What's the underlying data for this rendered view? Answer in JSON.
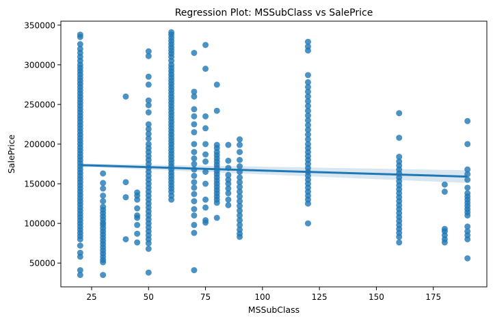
{
  "chart_data": {
    "type": "scatter",
    "title": "Regression Plot: MSSubClass vs SalePrice",
    "xlabel": "MSSubClass",
    "ylabel": "SalePrice",
    "xlim": [
      11.5,
      198.5
    ],
    "ylim": [
      20000,
      355000
    ],
    "xticks": [
      25,
      50,
      75,
      100,
      125,
      150,
      175
    ],
    "yticks": [
      50000,
      100000,
      150000,
      200000,
      250000,
      300000,
      350000
    ],
    "grid": false,
    "legend": "none",
    "point_color": "#1f77b4",
    "line_color": "#1f77b4",
    "band_color": "#1f77b4",
    "regression": {
      "x": [
        20,
        190
      ],
      "y": [
        173500,
        159000
      ],
      "ci_lower": [
        171500,
        151000
      ],
      "ci_upper": [
        175500,
        167000
      ]
    },
    "groups": [
      {
        "x": 20,
        "values": [
          338000,
          335000,
          326000,
          320000,
          315000,
          310000,
          305000,
          300000,
          296000,
          292000,
          288000,
          284000,
          280000,
          276000,
          272000,
          268000,
          264000,
          260000,
          256000,
          252000,
          248000,
          244000,
          240000,
          236000,
          232000,
          228000,
          224000,
          220000,
          216000,
          212000,
          208000,
          204000,
          200000,
          196000,
          192000,
          188000,
          184000,
          180000,
          176000,
          172000,
          168000,
          164000,
          160000,
          156000,
          152000,
          148000,
          144000,
          140000,
          136000,
          132000,
          128000,
          124000,
          120000,
          116000,
          112000,
          108000,
          104000,
          100000,
          96000,
          92000,
          88000,
          84000,
          80000,
          72000,
          63000,
          58000,
          41000,
          35000
        ]
      },
      {
        "x": 30,
        "values": [
          163000,
          151000,
          144000,
          135000,
          128000,
          121000,
          117000,
          113000,
          109000,
          105000,
          101000,
          98000,
          94000,
          90000,
          86000,
          82000,
          78000,
          74000,
          70000,
          66000,
          62000,
          58000,
          54000,
          51000,
          35000
        ]
      },
      {
        "x": 40,
        "values": [
          260000,
          152000,
          133000,
          80000
        ]
      },
      {
        "x": 45,
        "values": [
          139000,
          135000,
          130000,
          119000,
          110000,
          107000,
          98000,
          87000,
          76000
        ]
      },
      {
        "x": 50,
        "values": [
          317000,
          311000,
          285000,
          275000,
          255000,
          249000,
          240000,
          225000,
          219000,
          213000,
          207000,
          200000,
          195000,
          190000,
          185000,
          180000,
          175000,
          170000,
          165000,
          160000,
          155000,
          150000,
          145000,
          140000,
          135000,
          130000,
          125000,
          120000,
          115000,
          110000,
          105000,
          100000,
          95000,
          90000,
          85000,
          80000,
          75000,
          68000,
          38000
        ]
      },
      {
        "x": 60,
        "values": [
          341000,
          338000,
          334000,
          330000,
          326000,
          322000,
          318000,
          314000,
          310000,
          305000,
          300000,
          296000,
          292000,
          288000,
          284000,
          280000,
          276000,
          272000,
          268000,
          264000,
          260000,
          256000,
          252000,
          248000,
          244000,
          240000,
          236000,
          232000,
          228000,
          224000,
          220000,
          216000,
          212000,
          208000,
          204000,
          200000,
          196000,
          192000,
          188000,
          184000,
          180000,
          176000,
          172000,
          168000,
          164000,
          160000,
          156000,
          152000,
          148000,
          144000,
          140000,
          135000,
          130000
        ]
      },
      {
        "x": 70,
        "values": [
          315000,
          266000,
          260000,
          244000,
          235000,
          225000,
          215000,
          200000,
          190000,
          182000,
          175000,
          168000,
          160000,
          152000,
          145000,
          137000,
          128000,
          118000,
          110000,
          98000,
          88000,
          41000
        ]
      },
      {
        "x": 75,
        "values": [
          325000,
          295000,
          235000,
          220000,
          200000,
          187000,
          178000,
          165000,
          150000,
          130000,
          120000,
          104000,
          101000
        ]
      },
      {
        "x": 80,
        "values": [
          275000,
          242000,
          199000,
          195000,
          190000,
          186000,
          182000,
          178000,
          174000,
          170000,
          166000,
          162000,
          158000,
          154000,
          150000,
          146000,
          142000,
          138000,
          134000,
          130000,
          126000,
          107000
        ]
      },
      {
        "x": 85,
        "values": [
          199000,
          179000,
          170000,
          161000,
          155000,
          150000,
          144000,
          138000,
          130000,
          123000
        ]
      },
      {
        "x": 90,
        "values": [
          206000,
          199000,
          190000,
          180000,
          172000,
          165000,
          158000,
          152000,
          146000,
          140000,
          134000,
          128000,
          122000,
          116000,
          110000,
          104000,
          98000,
          92000,
          87000,
          83000
        ]
      },
      {
        "x": 120,
        "values": [
          329000,
          323000,
          318000,
          287000,
          278000,
          272000,
          266000,
          260000,
          254000,
          248000,
          242000,
          236000,
          230000,
          224000,
          218000,
          212000,
          206000,
          200000,
          195000,
          190000,
          185000,
          180000,
          175000,
          170000,
          165000,
          160000,
          155000,
          150000,
          145000,
          140000,
          135000,
          130000,
          125000,
          100000
        ]
      },
      {
        "x": 160,
        "values": [
          239000,
          208000,
          184000,
          178000,
          173000,
          168000,
          163000,
          158000,
          153000,
          148000,
          143000,
          138000,
          133000,
          128000,
          123000,
          118000,
          113000,
          108000,
          103000,
          98000,
          93000,
          88000,
          83000,
          76000
        ]
      },
      {
        "x": 180,
        "values": [
          149000,
          140000,
          93000,
          90000,
          85000,
          80000,
          76000
        ]
      },
      {
        "x": 190,
        "values": [
          229000,
          200000,
          168000,
          162000,
          155000,
          145000,
          138000,
          134000,
          130000,
          126000,
          122000,
          118000,
          114000,
          110000,
          96000,
          90000,
          85000,
          80000,
          56000
        ]
      }
    ]
  }
}
